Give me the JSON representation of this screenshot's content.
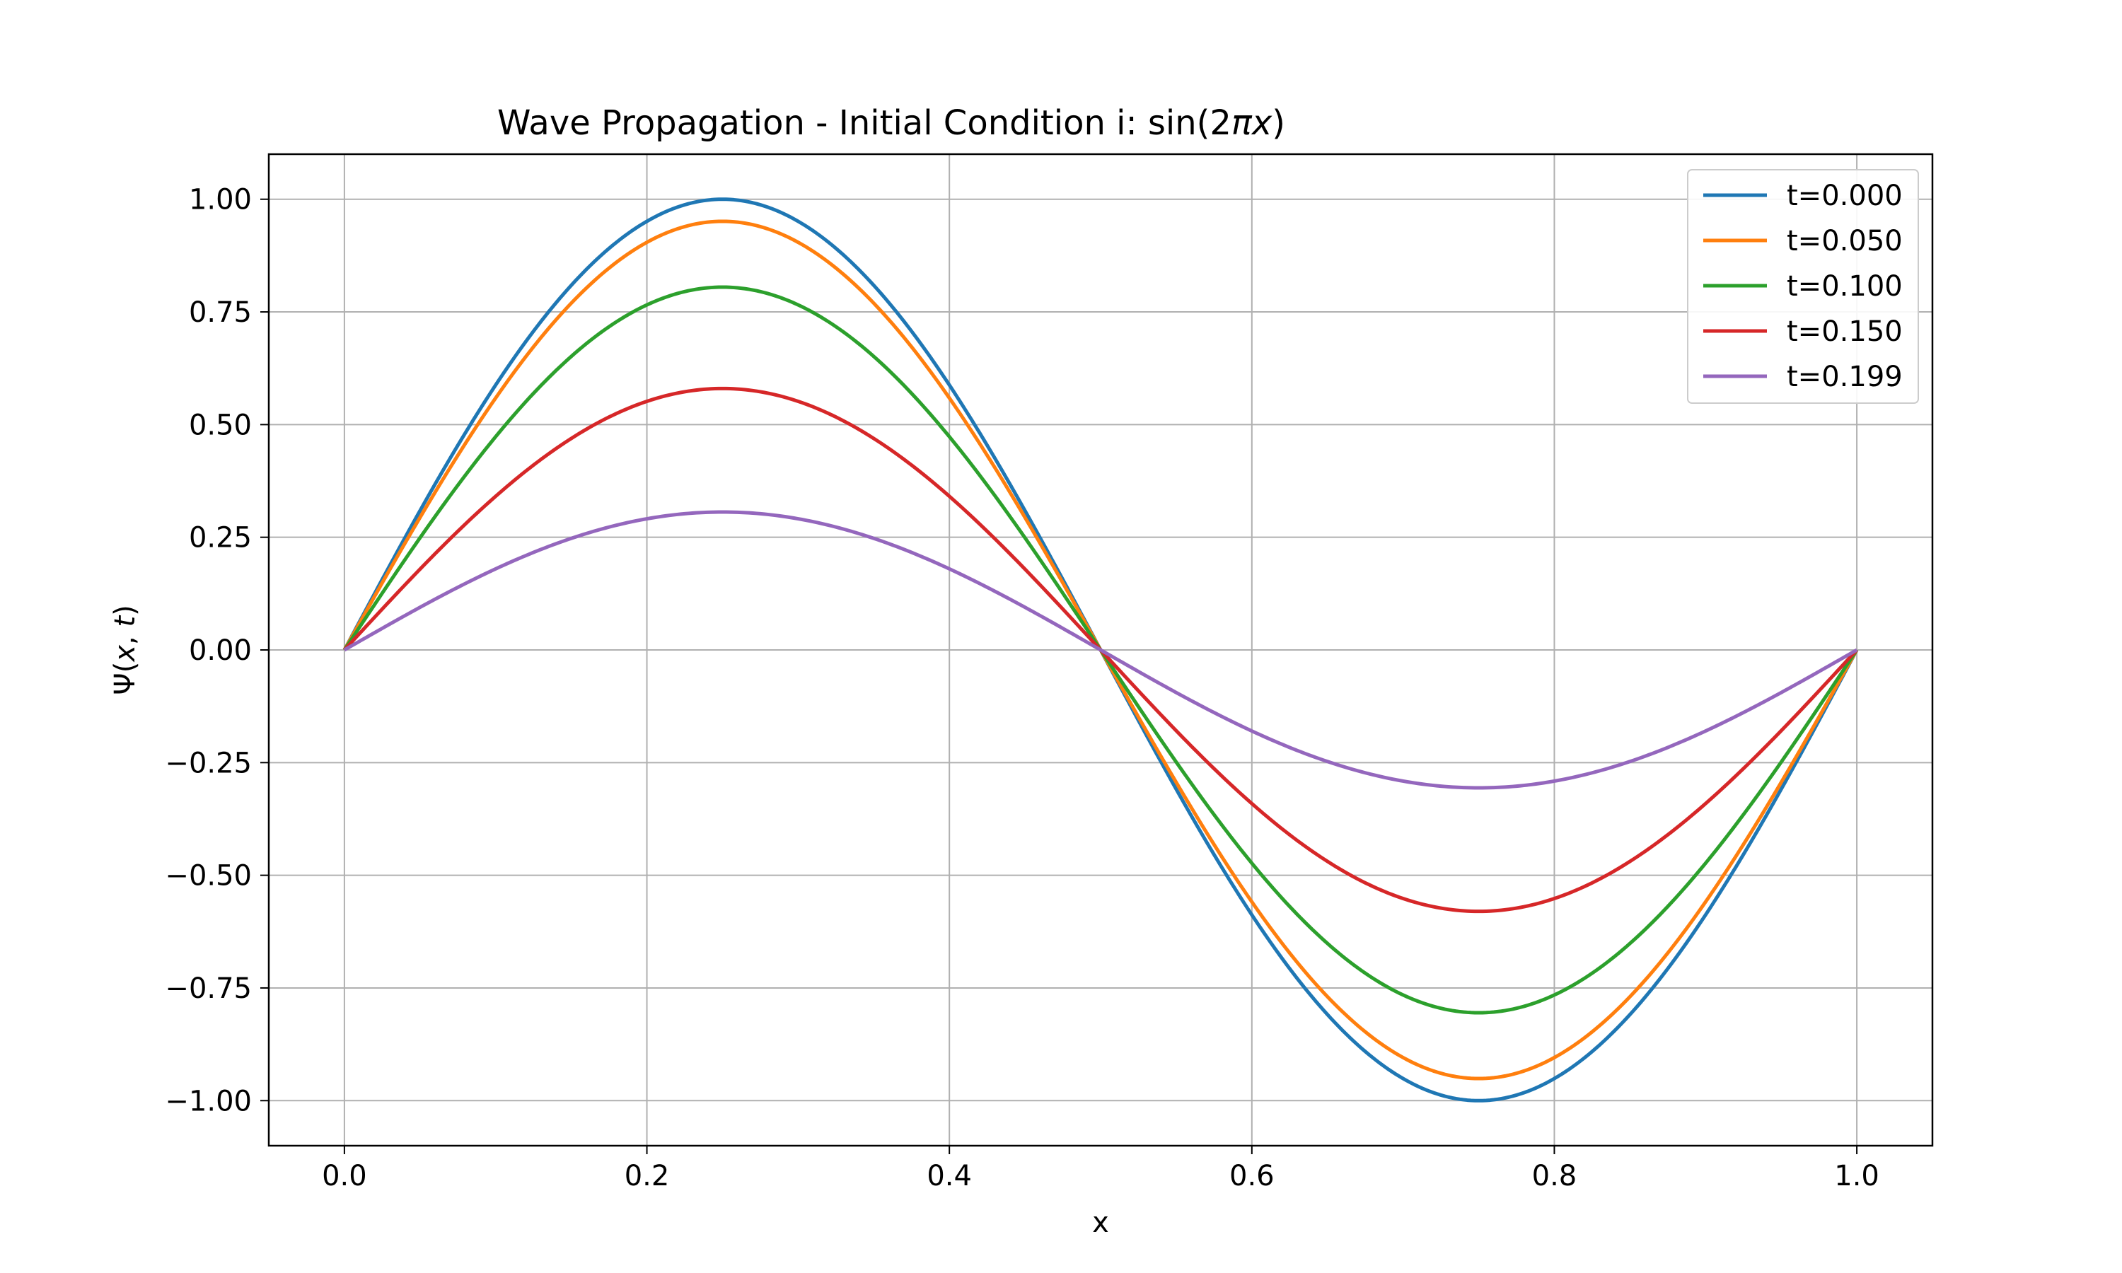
{
  "chart_data": {
    "type": "line",
    "title_prefix": "Wave Propagation - Initial Condition i: sin(2",
    "title_pi": "π",
    "title_x": "x",
    "title_suffix": ")",
    "xlabel": "x",
    "ylabel_psi": "Ψ(",
    "ylabel_x": "x",
    "ylabel_sep": ", ",
    "ylabel_t": "t",
    "ylabel_close": ")",
    "xlim": [
      -0.05,
      1.05
    ],
    "ylim": [
      -1.1,
      1.1
    ],
    "x_ticks": [
      0.0,
      0.2,
      0.4,
      0.6,
      0.8,
      1.0
    ],
    "x_tick_labels": [
      "0.0",
      "0.2",
      "0.4",
      "0.6",
      "0.8",
      "1.0"
    ],
    "y_ticks": [
      1.0,
      0.75,
      0.5,
      0.25,
      0.0,
      -0.25,
      -0.5,
      -0.75,
      -1.0
    ],
    "y_tick_labels": [
      "1.00",
      "0.75",
      "0.50",
      "0.25",
      "0.00",
      "−0.25",
      "−0.50",
      "−0.75",
      "−1.00"
    ],
    "grid": true,
    "legend_position": "top-right",
    "function": "amplitude * sin(2*pi*x)",
    "x": [
      0.0,
      0.05,
      0.1,
      0.15,
      0.2,
      0.25,
      0.3,
      0.35,
      0.4,
      0.45,
      0.5,
      0.55,
      0.6,
      0.65,
      0.7,
      0.75,
      0.8,
      0.85,
      0.9,
      0.95,
      1.0
    ],
    "series": [
      {
        "name": "t=0.000",
        "amplitude": 1.0,
        "color": "#1f77b4",
        "values": [
          0.0,
          0.309,
          0.588,
          0.809,
          0.951,
          1.0,
          0.951,
          0.809,
          0.588,
          0.309,
          0.0,
          -0.309,
          -0.588,
          -0.809,
          -0.951,
          -1.0,
          -0.951,
          -0.809,
          -0.588,
          -0.309,
          0.0
        ]
      },
      {
        "name": "t=0.050",
        "amplitude": 0.951,
        "color": "#ff7f0e",
        "values": [
          0.0,
          0.294,
          0.559,
          0.769,
          0.904,
          0.951,
          0.904,
          0.769,
          0.559,
          0.294,
          0.0,
          -0.294,
          -0.559,
          -0.769,
          -0.904,
          -0.951,
          -0.904,
          -0.769,
          -0.559,
          -0.294,
          0.0
        ]
      },
      {
        "name": "t=0.100",
        "amplitude": 0.805,
        "color": "#2ca02c",
        "values": [
          0.0,
          0.249,
          0.473,
          0.651,
          0.766,
          0.805,
          0.766,
          0.651,
          0.473,
          0.249,
          0.0,
          -0.249,
          -0.473,
          -0.651,
          -0.766,
          -0.805,
          -0.766,
          -0.651,
          -0.473,
          -0.249,
          0.0
        ]
      },
      {
        "name": "t=0.150",
        "amplitude": 0.58,
        "color": "#d62728",
        "values": [
          0.0,
          0.179,
          0.341,
          0.469,
          0.552,
          0.58,
          0.552,
          0.469,
          0.341,
          0.179,
          0.0,
          -0.179,
          -0.341,
          -0.469,
          -0.552,
          -0.58,
          -0.552,
          -0.469,
          -0.341,
          -0.179,
          0.0
        ]
      },
      {
        "name": "t=0.199",
        "amplitude": 0.306,
        "color": "#9467bd",
        "values": [
          0.0,
          0.095,
          0.18,
          0.248,
          0.291,
          0.306,
          0.291,
          0.248,
          0.18,
          0.095,
          0.0,
          -0.095,
          -0.18,
          -0.248,
          -0.291,
          -0.306,
          -0.291,
          -0.248,
          -0.18,
          -0.095,
          0.0
        ]
      }
    ]
  }
}
